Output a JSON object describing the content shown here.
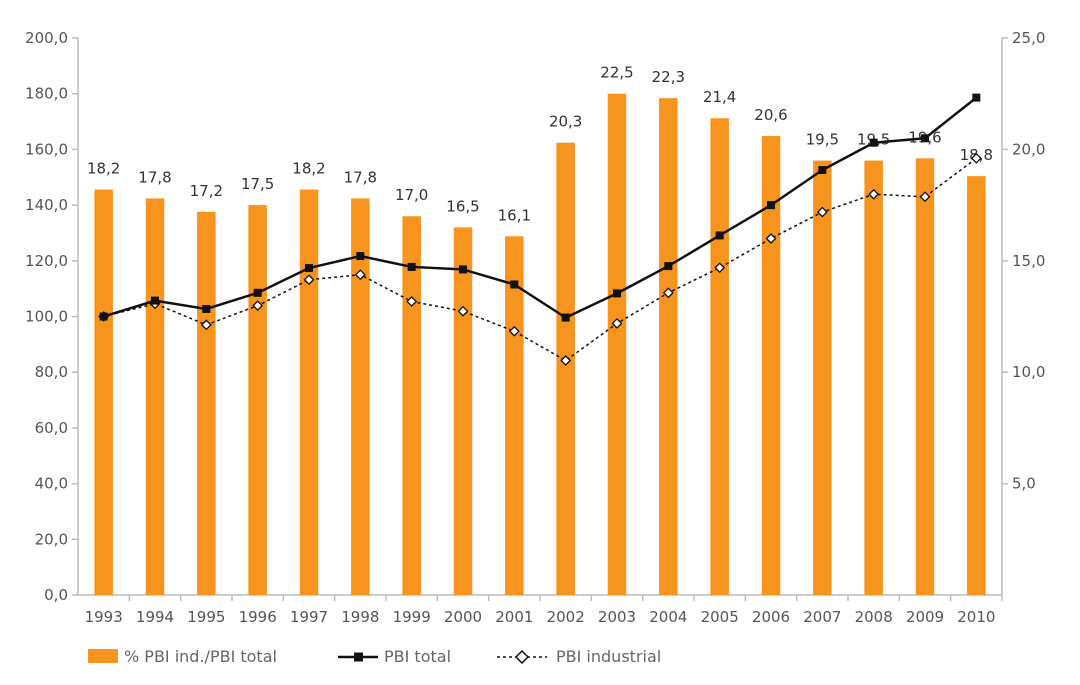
{
  "chart_data": {
    "type": "bar",
    "categories": [
      "1993",
      "1994",
      "1995",
      "1996",
      "1997",
      "1998",
      "1999",
      "2000",
      "2001",
      "2002",
      "2003",
      "2004",
      "2005",
      "2006",
      "2007",
      "2008",
      "2009",
      "2010"
    ],
    "series": [
      {
        "name": "% PBI ind./PBI total",
        "type": "bar",
        "axis": "right",
        "values": [
          18.2,
          17.8,
          17.2,
          17.5,
          18.2,
          17.8,
          17.0,
          16.5,
          16.1,
          20.3,
          22.5,
          22.3,
          21.4,
          20.6,
          19.5,
          19.5,
          19.6,
          18.8
        ],
        "labels": [
          "18,2",
          "17,8",
          "17,2",
          "17,5",
          "18,2",
          "17,8",
          "17,0",
          "16,5",
          "16,1",
          "20,3",
          "22,5",
          "22,3",
          "21,4",
          "20,6",
          "19,5",
          "19,5",
          "19,6",
          "18,8"
        ],
        "color": "#F7941D"
      },
      {
        "name": "PBI total",
        "type": "line",
        "axis": "left",
        "values": [
          100.0,
          105.7,
          102.7,
          108.5,
          117.4,
          121.7,
          117.8,
          116.9,
          111.5,
          99.6,
          108.3,
          118.1,
          129.1,
          140.0,
          152.6,
          162.4,
          164.0,
          178.6
        ],
        "color": "#111111",
        "marker": "square"
      },
      {
        "name": "PBI industrial",
        "type": "line",
        "axis": "left",
        "values": [
          100.0,
          104.6,
          97.0,
          103.9,
          113.2,
          115.0,
          105.4,
          101.9,
          94.7,
          84.2,
          97.5,
          108.5,
          117.5,
          128.0,
          137.5,
          143.9,
          143.0,
          156.8
        ],
        "color": "#111111",
        "marker": "diamond",
        "line_style": "dotted"
      }
    ],
    "y_left": {
      "range": [
        0,
        200
      ],
      "ticks": [
        0,
        20,
        40,
        60,
        80,
        100,
        120,
        140,
        160,
        180,
        200
      ],
      "tick_labels": [
        "0,0",
        "20,0",
        "40,0",
        "60,0",
        "80,0",
        "100,0",
        "120,0",
        "140,0",
        "160,0",
        "180,0",
        "200,0"
      ]
    },
    "y_right": {
      "range": [
        0,
        25
      ],
      "ticks": [
        5,
        10,
        15,
        20,
        25
      ],
      "tick_labels": [
        "5,0",
        "10,0",
        "15,0",
        "20,0",
        "25,0"
      ]
    },
    "grid": false,
    "legend_position": "bottom",
    "title": "",
    "xlabel": "",
    "ylabel": ""
  }
}
